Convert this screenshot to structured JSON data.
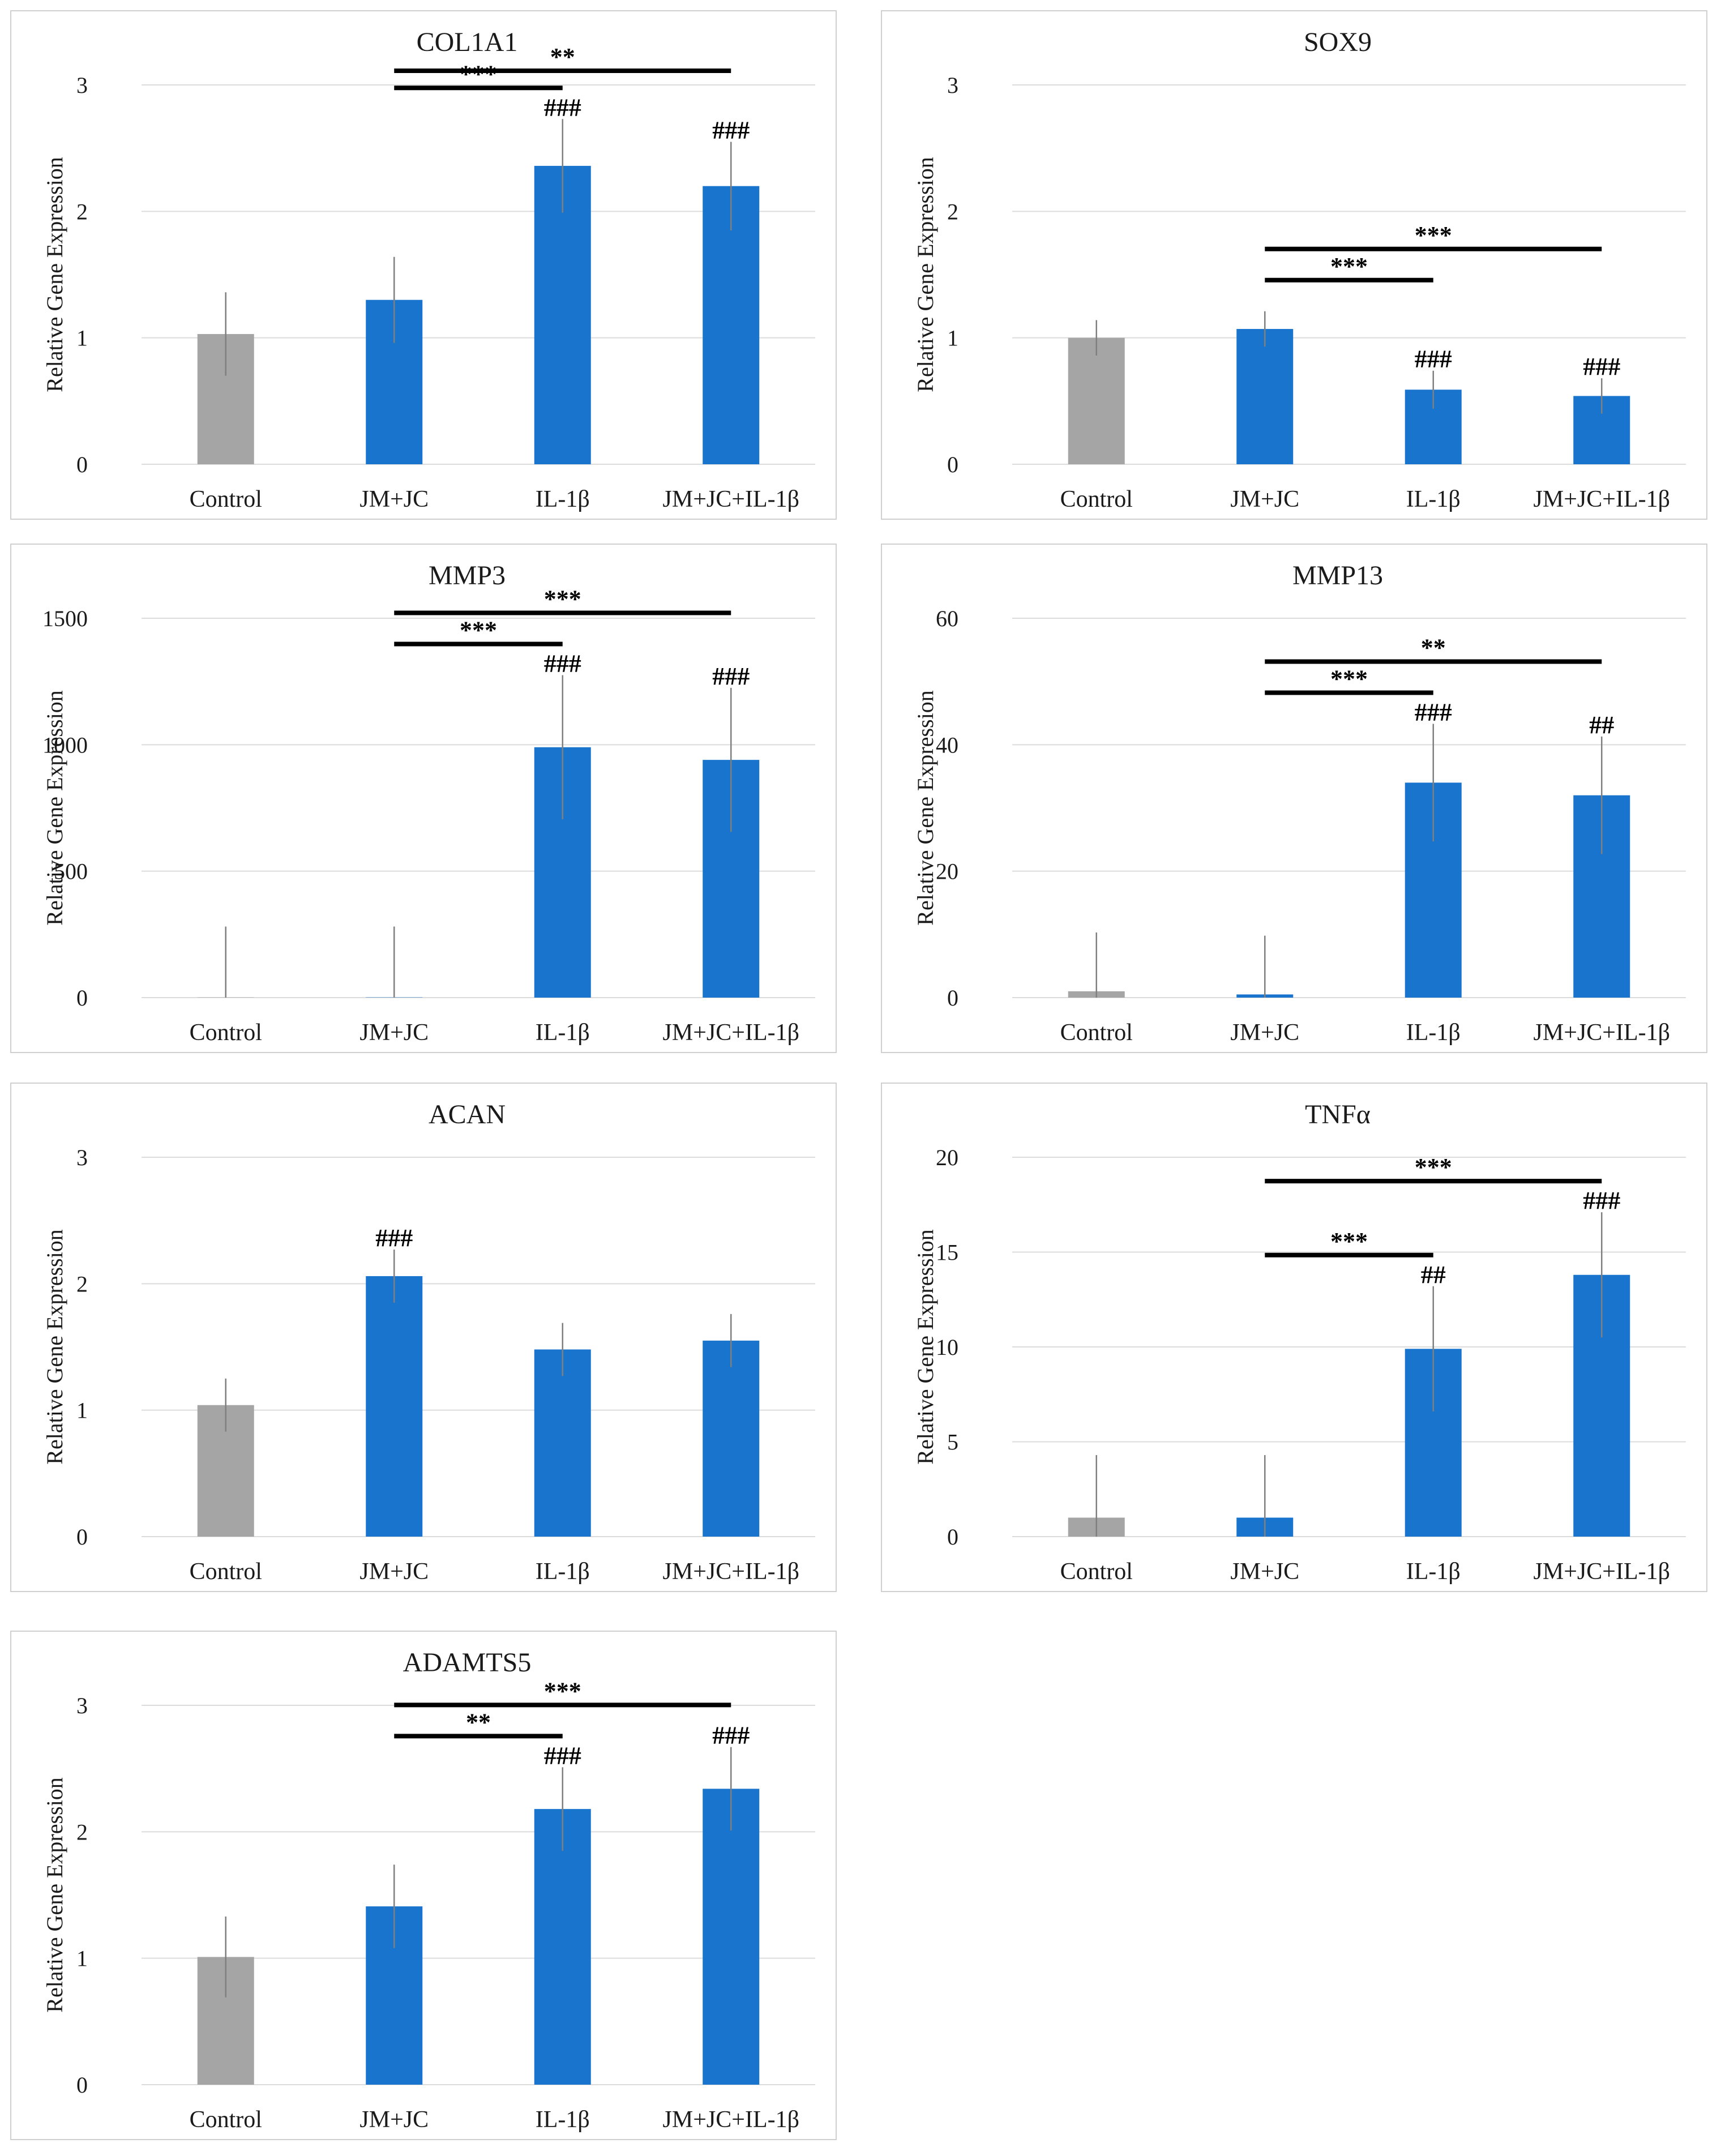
{
  "figure": {
    "ylabel": "Relative Gene Expression",
    "categories": [
      "Control",
      "JM+JC",
      "IL-1β",
      "JM+JC+IL-1β"
    ],
    "colors": {
      "control": "#a5a5a5",
      "treated": "#1874cd",
      "grid": "#dcdcdc",
      "errorbar": "#7f7f7f"
    }
  },
  "chart_data": [
    {
      "id": "col1a1",
      "type": "bar",
      "title": "COL1A1",
      "categories": [
        "Control",
        "JM+JC",
        "IL-1β",
        "JM+JC+IL-1β"
      ],
      "values": [
        1.03,
        1.3,
        2.36,
        2.2
      ],
      "errors": [
        0.33,
        0.34,
        0.37,
        0.35
      ],
      "ylim": [
        0,
        3
      ],
      "yticks": [
        0,
        1,
        2,
        3
      ],
      "hash_labels": [
        "",
        "",
        "###",
        "###"
      ],
      "brackets": [
        {
          "from": 1,
          "to": 3,
          "label": "**"
        },
        {
          "from": 1,
          "to": 2,
          "label": "***"
        }
      ]
    },
    {
      "id": "sox9",
      "type": "bar",
      "title": "SOX9",
      "categories": [
        "Control",
        "JM+JC",
        "IL-1β",
        "JM+JC+IL-1β"
      ],
      "values": [
        1.0,
        1.07,
        0.59,
        0.54
      ],
      "errors": [
        0.14,
        0.14,
        0.15,
        0.14
      ],
      "ylim": [
        0,
        3
      ],
      "yticks": [
        0,
        1,
        2,
        3
      ],
      "hash_labels": [
        "",
        "",
        "###",
        "###"
      ],
      "brackets": [
        {
          "from": 1,
          "to": 3,
          "label": "***"
        },
        {
          "from": 1,
          "to": 2,
          "label": "***"
        }
      ]
    },
    {
      "id": "mmp3",
      "type": "bar",
      "title": "MMP3",
      "categories": [
        "Control",
        "JM+JC",
        "IL-1β",
        "JM+JC+IL-1β"
      ],
      "values": [
        1,
        1,
        990,
        940
      ],
      "errors": [
        280,
        280,
        285,
        285
      ],
      "ylim": [
        0,
        1500
      ],
      "yticks": [
        0,
        500,
        1000,
        1500
      ],
      "hash_labels": [
        "",
        "",
        "###",
        "###"
      ],
      "brackets": [
        {
          "from": 1,
          "to": 3,
          "label": "***"
        },
        {
          "from": 1,
          "to": 2,
          "label": "***"
        }
      ]
    },
    {
      "id": "mmp13",
      "type": "bar",
      "title": "MMP13",
      "categories": [
        "Control",
        "JM+JC",
        "IL-1β",
        "JM+JC+IL-1β"
      ],
      "values": [
        1.0,
        0.5,
        34,
        32
      ],
      "errors": [
        9.3,
        9.3,
        9.3,
        9.3
      ],
      "ylim": [
        0,
        60
      ],
      "yticks": [
        0,
        20,
        40,
        60
      ],
      "hash_labels": [
        "",
        "",
        "###",
        "##"
      ],
      "brackets": [
        {
          "from": 1,
          "to": 3,
          "label": "**"
        },
        {
          "from": 1,
          "to": 2,
          "label": "***"
        }
      ]
    },
    {
      "id": "acan",
      "type": "bar",
      "title": "ACAN",
      "categories": [
        "Control",
        "JM+JC",
        "IL-1β",
        "JM+JC+IL-1β"
      ],
      "values": [
        1.04,
        2.06,
        1.48,
        1.55
      ],
      "errors": [
        0.21,
        0.21,
        0.21,
        0.21
      ],
      "ylim": [
        0,
        3
      ],
      "yticks": [
        0,
        1,
        2,
        3
      ],
      "hash_labels": [
        "",
        "###",
        "",
        ""
      ],
      "brackets": []
    },
    {
      "id": "tnfa",
      "type": "bar",
      "title": "TNFα",
      "categories": [
        "Control",
        "JM+JC",
        "IL-1β",
        "JM+JC+IL-1β"
      ],
      "values": [
        1.0,
        1.0,
        9.9,
        13.8
      ],
      "errors": [
        3.3,
        3.3,
        3.3,
        3.3
      ],
      "ylim": [
        0,
        20
      ],
      "yticks": [
        0,
        5,
        10,
        15,
        20
      ],
      "hash_labels": [
        "",
        "",
        "##",
        "###"
      ],
      "brackets": [
        {
          "from": 1,
          "to": 3,
          "label": "***"
        },
        {
          "from": 1,
          "to": 2,
          "label": "***"
        }
      ]
    },
    {
      "id": "adamts5",
      "type": "bar",
      "title": "ADAMTS5",
      "categories": [
        "Control",
        "JM+JC",
        "IL-1β",
        "JM+JC+IL-1β"
      ],
      "values": [
        1.01,
        1.41,
        2.18,
        2.34
      ],
      "errors": [
        0.32,
        0.33,
        0.33,
        0.33
      ],
      "ylim": [
        0,
        3
      ],
      "yticks": [
        0,
        1,
        2,
        3
      ],
      "hash_labels": [
        "",
        "",
        "###",
        "###"
      ],
      "brackets": [
        {
          "from": 1,
          "to": 3,
          "label": "***"
        },
        {
          "from": 1,
          "to": 2,
          "label": "**"
        }
      ]
    }
  ]
}
